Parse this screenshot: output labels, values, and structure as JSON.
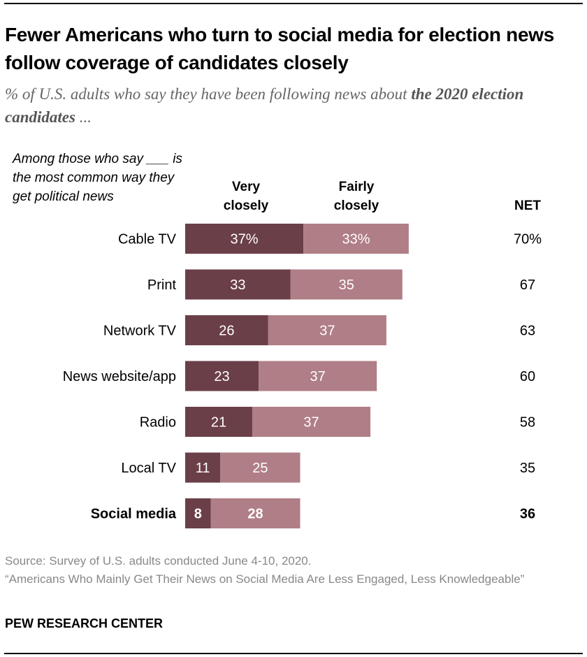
{
  "title": "Fewer Americans who turn to social media for election news follow coverage of candidates closely",
  "subtitle": {
    "prefix": "% of U.S. adults who say they have been following news about ",
    "emphasis": "the 2020 election candidates",
    "suffix": " ..."
  },
  "row_header": "Among those who say ___ is the most common way they get political news",
  "columns": {
    "very": "Very closely",
    "fairly": "Fairly closely",
    "net": "NET"
  },
  "colors": {
    "very": "#6b3f48",
    "fairly": "#b07e86"
  },
  "chart_data": {
    "type": "bar",
    "orientation": "horizontal",
    "stacked": true,
    "title": "Fewer Americans who turn to social media for election news follow coverage of candidates closely",
    "categories": [
      "Cable TV",
      "Print",
      "Network TV",
      "News website/app",
      "Radio",
      "Local TV",
      "Social media"
    ],
    "highlight": [
      "Social media"
    ],
    "series": [
      {
        "name": "Very closely",
        "values": [
          37,
          33,
          26,
          23,
          21,
          11,
          8
        ]
      },
      {
        "name": "Fairly closely",
        "values": [
          33,
          35,
          37,
          37,
          37,
          25,
          28
        ]
      }
    ],
    "net": [
      70,
      67,
      63,
      60,
      58,
      35,
      36
    ],
    "first_row_suffix": "%",
    "xlabel": "",
    "ylabel": "",
    "xlim": [
      0,
      100
    ],
    "grid": false,
    "legend": "top (column headers)"
  },
  "source": {
    "line1": "Source: Survey of U.S. adults conducted June 4-10, 2020.",
    "line2": "“Americans Who Mainly Get Their News on Social Media Are Less Engaged, Less Knowledgeable”"
  },
  "brand": "PEW RESEARCH CENTER"
}
